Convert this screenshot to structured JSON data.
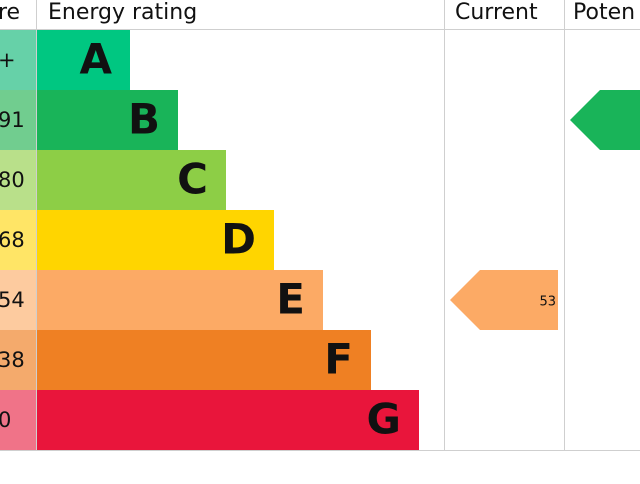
{
  "header": {
    "score": "re",
    "rating": "Energy rating",
    "current": "Current",
    "potential": "Poten"
  },
  "rows": [
    {
      "score": "+",
      "rating": "A"
    },
    {
      "score": "91",
      "rating": "B"
    },
    {
      "score": "80",
      "rating": "C"
    },
    {
      "score": "68",
      "rating": "D"
    },
    {
      "score": "54",
      "rating": "E"
    },
    {
      "score": "38",
      "rating": "F"
    },
    {
      "score": "0",
      "rating": "G"
    }
  ],
  "current": "53"
}
